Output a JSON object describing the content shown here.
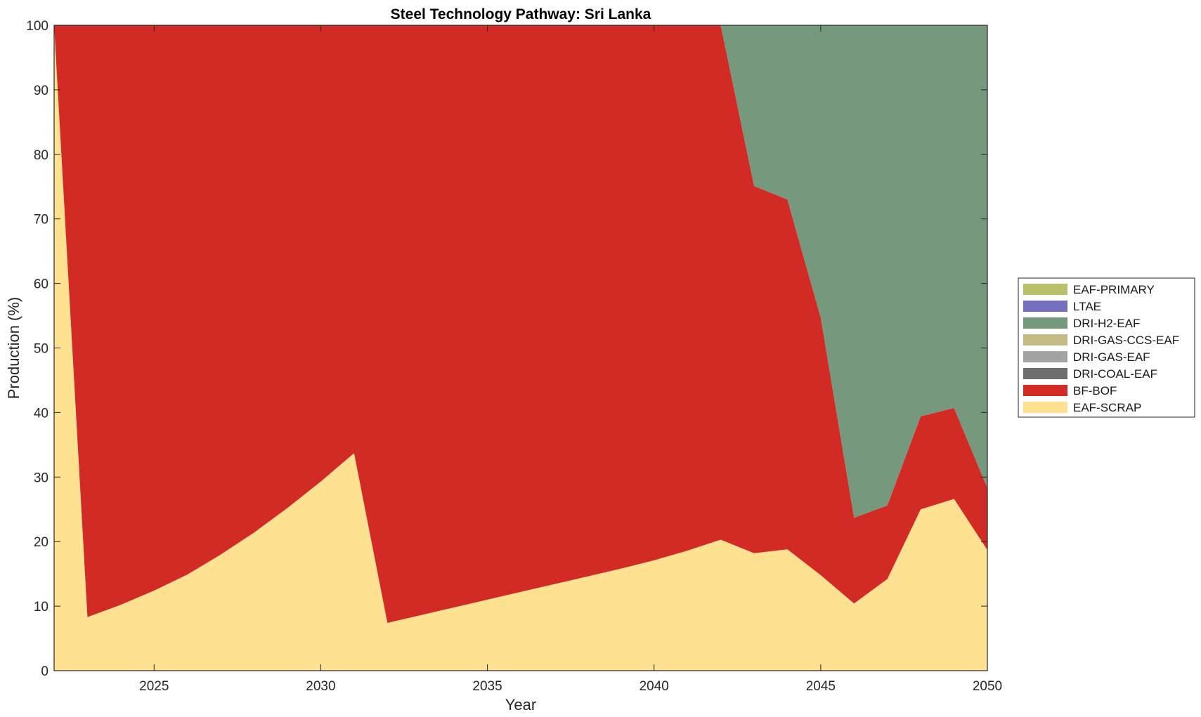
{
  "chart_data": {
    "type": "area",
    "stacked": true,
    "title": "Steel Technology Pathway: Sri Lanka",
    "xlabel": "Year",
    "ylabel": "Production (%)",
    "xlim": [
      2022,
      2050
    ],
    "ylim": [
      0,
      100
    ],
    "xticks": [
      2025,
      2030,
      2035,
      2040,
      2045,
      2050
    ],
    "yticks": [
      0,
      10,
      20,
      30,
      40,
      50,
      60,
      70,
      80,
      90,
      100
    ],
    "grid": false,
    "legend_position": "outside-right",
    "x": [
      2022,
      2023,
      2024,
      2025,
      2026,
      2027,
      2028,
      2029,
      2030,
      2031,
      2032,
      2033,
      2034,
      2035,
      2036,
      2037,
      2038,
      2039,
      2040,
      2041,
      2042,
      2043,
      2044,
      2045,
      2046,
      2047,
      2048,
      2049,
      2050
    ],
    "series": [
      {
        "name": "EAF-SCRAP",
        "color": "#FEE292",
        "values": [
          100,
          8.3,
          10.2,
          12.4,
          14.9,
          18.0,
          21.4,
          25.2,
          29.3,
          33.7,
          7.4,
          8.6,
          9.8,
          11.0,
          12.2,
          13.4,
          14.6,
          15.8,
          17.1,
          18.6,
          20.3,
          18.2,
          18.8,
          14.8,
          10.4,
          14.2,
          25.0,
          26.6,
          18.7
        ]
      },
      {
        "name": "BF-BOF",
        "color": "#D22B26",
        "values": [
          0,
          91.7,
          89.8,
          87.6,
          85.1,
          82.0,
          78.6,
          74.8,
          70.7,
          66.3,
          92.6,
          91.4,
          90.2,
          89.0,
          87.8,
          86.6,
          85.4,
          84.2,
          82.9,
          81.4,
          79.7,
          56.9,
          54.2,
          39.9,
          13.3,
          11.4,
          14.4,
          14.1,
          9.6
        ]
      },
      {
        "name": "DRI-COAL-EAF",
        "color": "#6E6E6E",
        "values": [
          0,
          0,
          0,
          0,
          0,
          0,
          0,
          0,
          0,
          0,
          0,
          0,
          0,
          0,
          0,
          0,
          0,
          0,
          0,
          0,
          0,
          0,
          0,
          0,
          0,
          0,
          0,
          0,
          0
        ]
      },
      {
        "name": "DRI-GAS-EAF",
        "color": "#A3A3A3",
        "values": [
          0,
          0,
          0,
          0,
          0,
          0,
          0,
          0,
          0,
          0,
          0,
          0,
          0,
          0,
          0,
          0,
          0,
          0,
          0,
          0,
          0,
          0,
          0,
          0,
          0,
          0,
          0,
          0,
          0
        ]
      },
      {
        "name": "DRI-GAS-CCS-EAF",
        "color": "#C5BC85",
        "values": [
          0,
          0,
          0,
          0,
          0,
          0,
          0,
          0,
          0,
          0,
          0,
          0,
          0,
          0,
          0,
          0,
          0,
          0,
          0,
          0,
          0,
          0,
          0,
          0,
          0,
          0,
          0,
          0,
          0
        ]
      },
      {
        "name": "DRI-H2-EAF",
        "color": "#76987D",
        "values": [
          0,
          0,
          0,
          0,
          0,
          0,
          0,
          0,
          0,
          0,
          0,
          0,
          0,
          0,
          0,
          0,
          0,
          0,
          0,
          0,
          0,
          24.9,
          27.0,
          45.3,
          76.3,
          74.4,
          60.6,
          59.3,
          71.7
        ]
      },
      {
        "name": "LTAE",
        "color": "#7570BF",
        "values": [
          0,
          0,
          0,
          0,
          0,
          0,
          0,
          0,
          0,
          0,
          0,
          0,
          0,
          0,
          0,
          0,
          0,
          0,
          0,
          0,
          0,
          0,
          0,
          0,
          0,
          0,
          0,
          0,
          0
        ]
      },
      {
        "name": "EAF-PRIMARY",
        "color": "#B9C06A",
        "values": [
          0,
          0,
          0,
          0,
          0,
          0,
          0,
          0,
          0,
          0,
          0,
          0,
          0,
          0,
          0,
          0,
          0,
          0,
          0,
          0,
          0,
          0,
          0,
          0,
          0,
          0,
          0,
          0,
          0
        ]
      }
    ],
    "legend_order": [
      "EAF-PRIMARY",
      "LTAE",
      "DRI-H2-EAF",
      "DRI-GAS-CCS-EAF",
      "DRI-GAS-EAF",
      "DRI-COAL-EAF",
      "BF-BOF",
      "EAF-SCRAP"
    ]
  }
}
